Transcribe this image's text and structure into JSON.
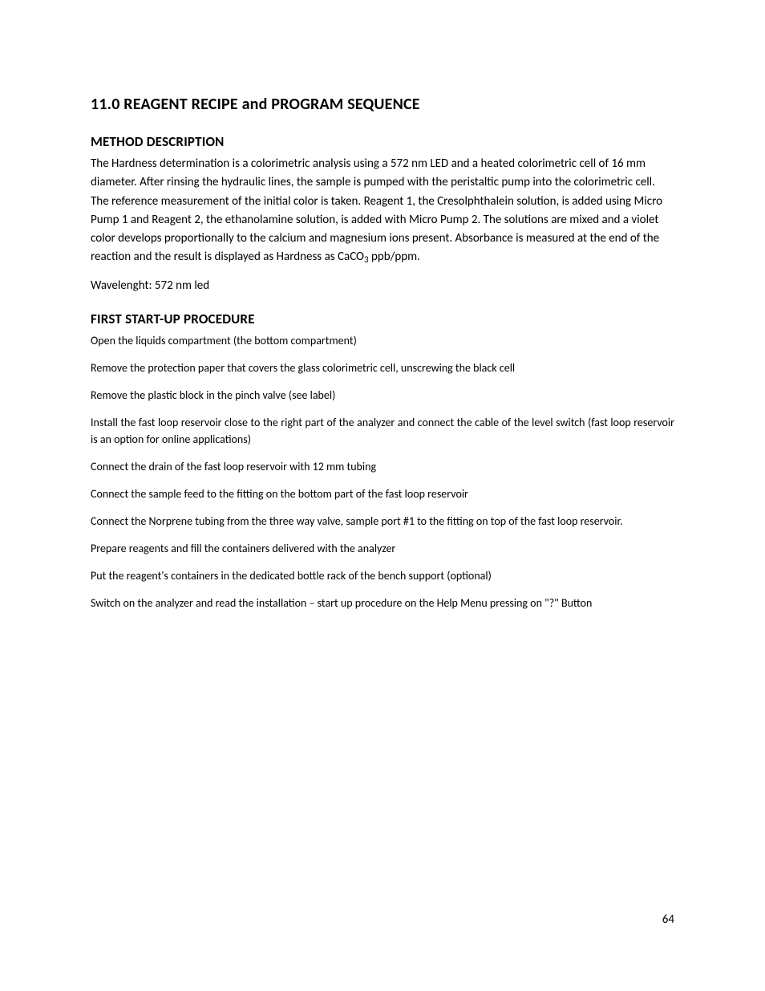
{
  "heading_main": "11.0 REAGENT RECIPE and PROGRAM SEQUENCE",
  "section1": {
    "title": "METHOD DESCRIPTION",
    "body_pre": "The Hardness determination is a colorimetric analysis using a 572 nm LED and a heated colorimetric cell of 16 mm diameter. After rinsing the hydraulic lines, the sample is pumped with the peristaltic pump into the colorimetric cell. The reference measurement of the initial color is taken.  Reagent 1, the Cresolphthalein solution, is added using Micro Pump 1 and Reagent 2, the ethanolamine solution, is added with Micro Pump 2. The solutions are mixed and a violet color develops proportionally to the calcium and magnesium ions present. Absorbance is measured at the end of the reaction and the result is displayed as Hardness as CaCO",
    "body_sub": "3",
    "body_post": " ppb/ppm.",
    "wavelength": "Wavelenght: 572 nm led"
  },
  "section2": {
    "title": "FIRST START-UP PROCEDURE",
    "steps": [
      "Open the liquids compartment (the bottom compartment)",
      "Remove the protection paper that covers the glass colorimetric cell, unscrewing the black cell",
      "Remove the plastic block in the pinch valve (see label)",
      "Install the fast loop reservoir close to the right part of the analyzer and connect the cable of the level switch (fast loop reservoir is an option for online applications)",
      "Connect the drain of the fast loop reservoir with 12 mm tubing",
      "Connect the sample feed to the fitting on the bottom part of the fast loop reservoir",
      "Connect the Norprene tubing from the three way valve, sample port #1 to the fitting on top of the fast loop reservoir.",
      "Prepare reagents and fill the containers delivered with the analyzer",
      "Put the reagent's containers in the dedicated bottle rack of the bench support (optional)",
      "Switch on the analyzer and read the installation – start up procedure on the Help Menu pressing on \"?\" Button"
    ],
    "justify_indices": [
      3,
      6
    ]
  },
  "page_number": "64",
  "colors": {
    "text": "#000000",
    "background": "#ffffff"
  },
  "typography": {
    "body_family": "Calibri",
    "h1_size_pt": 15,
    "h2_size_pt": 13,
    "body_size_pt": 11,
    "step_size_pt": 10.5
  }
}
